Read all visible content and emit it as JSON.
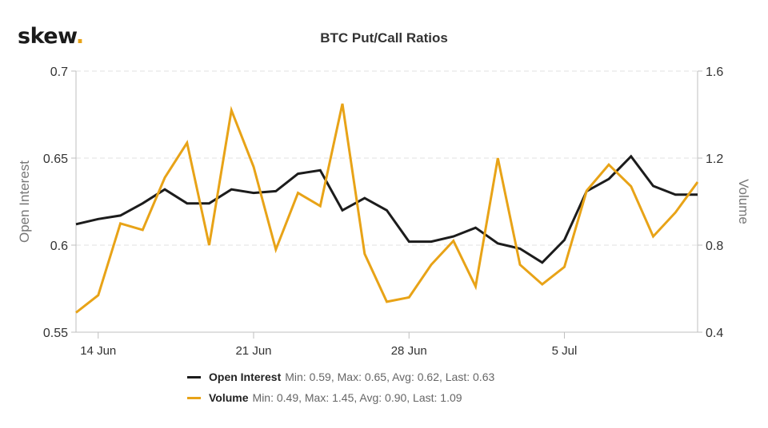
{
  "brand": {
    "name": "skew",
    "dot": "."
  },
  "chart_data": {
    "type": "line",
    "title": "BTC Put/Call Ratios",
    "x_ticks": [
      "14 Jun",
      "21 Jun",
      "28 Jun",
      "5 Jul"
    ],
    "x_tick_days": [
      1,
      8,
      15,
      22
    ],
    "x_range": [
      0,
      28
    ],
    "y_left": {
      "label": "Open Interest",
      "range": [
        0.55,
        0.7
      ],
      "ticks": [
        "0.55",
        "0.6",
        "0.65",
        "0.7"
      ],
      "tick_values": [
        0.55,
        0.6,
        0.65,
        0.7
      ]
    },
    "y_right": {
      "label": "Volume",
      "range": [
        0.4,
        1.6
      ],
      "ticks": [
        "0.4",
        "0.8",
        "1.2",
        "1.6"
      ],
      "tick_values": [
        0.4,
        0.8,
        1.2,
        1.6
      ]
    },
    "grid": true,
    "x": [
      0,
      1,
      2,
      3,
      4,
      5,
      6,
      7,
      8,
      9,
      10,
      11,
      12,
      13,
      14,
      15,
      16,
      17,
      18,
      19,
      20,
      21,
      22,
      23,
      24,
      25,
      26,
      27,
      28
    ],
    "series": [
      {
        "name": "Open Interest",
        "axis": "left",
        "color": "#1c1c1c",
        "values": [
          0.612,
          0.615,
          0.617,
          0.624,
          0.632,
          0.624,
          0.624,
          0.632,
          0.63,
          0.631,
          0.641,
          0.643,
          0.62,
          0.627,
          0.62,
          0.602,
          0.602,
          0.605,
          0.61,
          0.601,
          0.598,
          0.59,
          0.603,
          0.631,
          0.638,
          0.651,
          0.634,
          0.629,
          0.629
        ],
        "stats": "Min: 0.59, Max: 0.65, Avg: 0.62, Last: 0.63"
      },
      {
        "name": "Volume",
        "axis": "right",
        "color": "#e8a317",
        "values": [
          0.49,
          0.57,
          0.9,
          0.87,
          1.11,
          1.27,
          0.8,
          1.42,
          1.16,
          0.78,
          1.04,
          0.98,
          1.45,
          0.76,
          0.54,
          0.56,
          0.71,
          0.82,
          0.61,
          1.2,
          0.71,
          0.62,
          0.7,
          1.05,
          1.17,
          1.07,
          0.84,
          0.95,
          1.09
        ],
        "stats": "Min: 0.49, Max: 1.45, Avg: 0.90, Last: 1.09"
      }
    ]
  }
}
